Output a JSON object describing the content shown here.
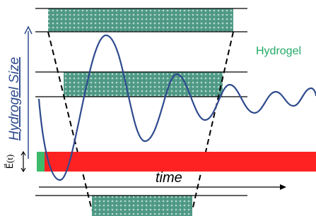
{
  "labels": {
    "y_axis": "Hydrogel Size",
    "material": "Hydrogel",
    "field": "E⃗(t)",
    "x_axis": "time"
  }
}
